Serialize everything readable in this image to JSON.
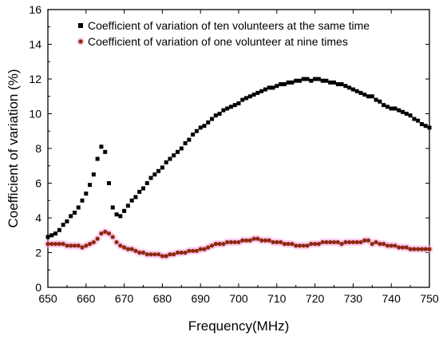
{
  "chart_data": {
    "type": "scatter",
    "title": "",
    "xlabel": "Frequency(MHz)",
    "ylabel": "Coefficient of variation (%)",
    "xlim": [
      650,
      750
    ],
    "ylim": [
      0,
      16
    ],
    "x_ticks": [
      650,
      660,
      670,
      680,
      690,
      700,
      710,
      720,
      730,
      740,
      750
    ],
    "y_ticks": [
      0,
      2,
      4,
      6,
      8,
      10,
      12,
      14,
      16
    ],
    "grid": false,
    "legend_position": "top-right",
    "series": [
      {
        "name": "Coefficient of variation of ten volunteers at the same time",
        "marker": "square",
        "color": "#000000",
        "points": [
          [
            650,
            2.9
          ],
          [
            651,
            3.0
          ],
          [
            652,
            3.1
          ],
          [
            653,
            3.3
          ],
          [
            654,
            3.6
          ],
          [
            655,
            3.8
          ],
          [
            656,
            4.1
          ],
          [
            657,
            4.3
          ],
          [
            658,
            4.6
          ],
          [
            659,
            5.0
          ],
          [
            660,
            5.4
          ],
          [
            661,
            5.9
          ],
          [
            662,
            6.5
          ],
          [
            663,
            7.4
          ],
          [
            664,
            8.1
          ],
          [
            665,
            7.8
          ],
          [
            666,
            6.0
          ],
          [
            667,
            4.6
          ],
          [
            668,
            4.2
          ],
          [
            669,
            4.1
          ],
          [
            670,
            4.4
          ],
          [
            671,
            4.7
          ],
          [
            672,
            5.0
          ],
          [
            673,
            5.2
          ],
          [
            674,
            5.5
          ],
          [
            675,
            5.7
          ],
          [
            676,
            6.0
          ],
          [
            677,
            6.3
          ],
          [
            678,
            6.5
          ],
          [
            679,
            6.7
          ],
          [
            680,
            6.9
          ],
          [
            681,
            7.2
          ],
          [
            682,
            7.4
          ],
          [
            683,
            7.6
          ],
          [
            684,
            7.8
          ],
          [
            685,
            8.0
          ],
          [
            686,
            8.3
          ],
          [
            687,
            8.5
          ],
          [
            688,
            8.8
          ],
          [
            689,
            9.0
          ],
          [
            690,
            9.2
          ],
          [
            691,
            9.3
          ],
          [
            692,
            9.5
          ],
          [
            693,
            9.7
          ],
          [
            694,
            9.9
          ],
          [
            695,
            10.0
          ],
          [
            696,
            10.2
          ],
          [
            697,
            10.3
          ],
          [
            698,
            10.4
          ],
          [
            699,
            10.5
          ],
          [
            700,
            10.6
          ],
          [
            701,
            10.8
          ],
          [
            702,
            10.9
          ],
          [
            703,
            11.0
          ],
          [
            704,
            11.1
          ],
          [
            705,
            11.2
          ],
          [
            706,
            11.3
          ],
          [
            707,
            11.4
          ],
          [
            708,
            11.5
          ],
          [
            709,
            11.5
          ],
          [
            710,
            11.6
          ],
          [
            711,
            11.7
          ],
          [
            712,
            11.7
          ],
          [
            713,
            11.8
          ],
          [
            714,
            11.8
          ],
          [
            715,
            11.9
          ],
          [
            716,
            11.9
          ],
          [
            717,
            12.0
          ],
          [
            718,
            12.0
          ],
          [
            719,
            11.9
          ],
          [
            720,
            12.0
          ],
          [
            721,
            12.0
          ],
          [
            722,
            11.9
          ],
          [
            723,
            11.9
          ],
          [
            724,
            11.8
          ],
          [
            725,
            11.8
          ],
          [
            726,
            11.7
          ],
          [
            727,
            11.7
          ],
          [
            728,
            11.6
          ],
          [
            729,
            11.5
          ],
          [
            730,
            11.4
          ],
          [
            731,
            11.3
          ],
          [
            732,
            11.2
          ],
          [
            733,
            11.1
          ],
          [
            734,
            11.0
          ],
          [
            735,
            11.0
          ],
          [
            736,
            10.8
          ],
          [
            737,
            10.7
          ],
          [
            738,
            10.5
          ],
          [
            739,
            10.4
          ],
          [
            740,
            10.3
          ],
          [
            741,
            10.3
          ],
          [
            742,
            10.2
          ],
          [
            743,
            10.1
          ],
          [
            744,
            10.0
          ],
          [
            745,
            9.9
          ],
          [
            746,
            9.7
          ],
          [
            747,
            9.6
          ],
          [
            748,
            9.4
          ],
          [
            749,
            9.3
          ],
          [
            750,
            9.2
          ]
        ]
      },
      {
        "name": "Coefficient of variation of one volunteer at nine times",
        "marker": "circle",
        "color": "#8b2a10",
        "points": [
          [
            650,
            2.5
          ],
          [
            651,
            2.5
          ],
          [
            652,
            2.5
          ],
          [
            653,
            2.5
          ],
          [
            654,
            2.5
          ],
          [
            655,
            2.4
          ],
          [
            656,
            2.4
          ],
          [
            657,
            2.4
          ],
          [
            658,
            2.4
          ],
          [
            659,
            2.3
          ],
          [
            660,
            2.4
          ],
          [
            661,
            2.5
          ],
          [
            662,
            2.6
          ],
          [
            663,
            2.8
          ],
          [
            664,
            3.1
          ],
          [
            665,
            3.2
          ],
          [
            666,
            3.1
          ],
          [
            667,
            2.9
          ],
          [
            668,
            2.6
          ],
          [
            669,
            2.4
          ],
          [
            670,
            2.3
          ],
          [
            671,
            2.2
          ],
          [
            672,
            2.2
          ],
          [
            673,
            2.1
          ],
          [
            674,
            2.0
          ],
          [
            675,
            2.0
          ],
          [
            676,
            1.9
          ],
          [
            677,
            1.9
          ],
          [
            678,
            1.9
          ],
          [
            679,
            1.9
          ],
          [
            680,
            1.8
          ],
          [
            681,
            1.8
          ],
          [
            682,
            1.9
          ],
          [
            683,
            1.9
          ],
          [
            684,
            2.0
          ],
          [
            685,
            2.0
          ],
          [
            686,
            2.0
          ],
          [
            687,
            2.1
          ],
          [
            688,
            2.1
          ],
          [
            689,
            2.1
          ],
          [
            690,
            2.2
          ],
          [
            691,
            2.2
          ],
          [
            692,
            2.3
          ],
          [
            693,
            2.4
          ],
          [
            694,
            2.5
          ],
          [
            695,
            2.5
          ],
          [
            696,
            2.5
          ],
          [
            697,
            2.6
          ],
          [
            698,
            2.6
          ],
          [
            699,
            2.6
          ],
          [
            700,
            2.6
          ],
          [
            701,
            2.7
          ],
          [
            702,
            2.7
          ],
          [
            703,
            2.7
          ],
          [
            704,
            2.8
          ],
          [
            705,
            2.8
          ],
          [
            706,
            2.7
          ],
          [
            707,
            2.7
          ],
          [
            708,
            2.7
          ],
          [
            709,
            2.6
          ],
          [
            710,
            2.6
          ],
          [
            711,
            2.6
          ],
          [
            712,
            2.5
          ],
          [
            713,
            2.5
          ],
          [
            714,
            2.5
          ],
          [
            715,
            2.4
          ],
          [
            716,
            2.4
          ],
          [
            717,
            2.4
          ],
          [
            718,
            2.4
          ],
          [
            719,
            2.5
          ],
          [
            720,
            2.5
          ],
          [
            721,
            2.5
          ],
          [
            722,
            2.6
          ],
          [
            723,
            2.6
          ],
          [
            724,
            2.6
          ],
          [
            725,
            2.6
          ],
          [
            726,
            2.6
          ],
          [
            727,
            2.5
          ],
          [
            728,
            2.6
          ],
          [
            729,
            2.6
          ],
          [
            730,
            2.6
          ],
          [
            731,
            2.6
          ],
          [
            732,
            2.6
          ],
          [
            733,
            2.7
          ],
          [
            734,
            2.7
          ],
          [
            735,
            2.5
          ],
          [
            736,
            2.6
          ],
          [
            737,
            2.5
          ],
          [
            738,
            2.5
          ],
          [
            739,
            2.4
          ],
          [
            740,
            2.4
          ],
          [
            741,
            2.4
          ],
          [
            742,
            2.3
          ],
          [
            743,
            2.3
          ],
          [
            744,
            2.3
          ],
          [
            745,
            2.2
          ],
          [
            746,
            2.2
          ],
          [
            747,
            2.2
          ],
          [
            748,
            2.2
          ],
          [
            749,
            2.2
          ],
          [
            750,
            2.2
          ]
        ]
      }
    ]
  }
}
